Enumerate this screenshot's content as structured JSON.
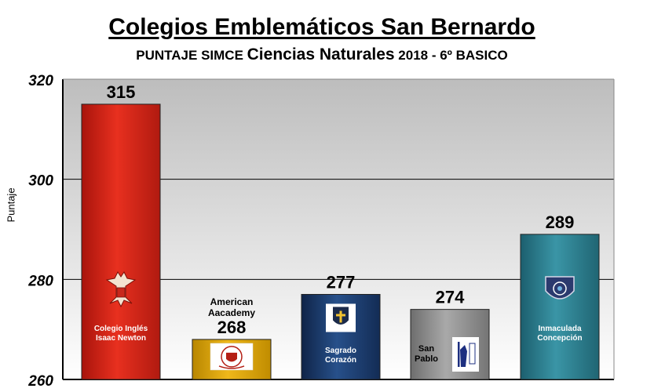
{
  "title": "Colegios Emblemáticos San Bernardo",
  "subtitle_prefix": "PUNTAJE SIMCE ",
  "subtitle_main": "Ciencias Naturales",
  "subtitle_suffix": " 2018 - 6º BASICO",
  "colors": {
    "red": "#d9261b",
    "gold": "#d8a400",
    "navy": "#1b3a68",
    "gray": "#8c8c8c",
    "teal": "#2a7e8e"
  },
  "chart_data": {
    "type": "bar",
    "ylabel": "Puntaje",
    "ylim": [
      260,
      320
    ],
    "yticks": [
      260,
      280,
      300,
      320
    ],
    "grid": true,
    "categories": [
      {
        "name_lines": [
          "Colegio Inglés",
          "Isaac Newton"
        ],
        "label_pos": "inside",
        "icon": "eagle-crest-icon",
        "color": "red"
      },
      {
        "name_lines": [
          "American",
          "Aacademy"
        ],
        "label_pos": "above",
        "icon": "american-academy-crest-icon",
        "color": "gold"
      },
      {
        "name_lines": [
          "Sagrado",
          "Corazón"
        ],
        "label_pos": "inside",
        "icon": "sagrado-corazon-crest-icon",
        "color": "navy"
      },
      {
        "name_lines": [
          "San",
          "Pablo"
        ],
        "label_pos": "inside-left",
        "icon": "san-pablo-crest-icon",
        "color": "gray"
      },
      {
        "name_lines": [
          "Inmaculada",
          "Concepción"
        ],
        "label_pos": "inside",
        "icon": "inmaculada-crest-icon",
        "color": "teal"
      }
    ],
    "values": [
      315,
      268,
      277,
      274,
      289
    ]
  }
}
